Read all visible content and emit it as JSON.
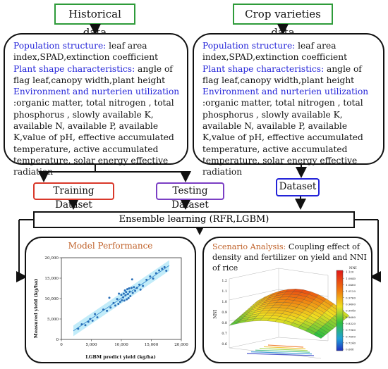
{
  "top": {
    "left": "Historical data",
    "right": "Crop varieties data"
  },
  "left_box": {
    "h1": "Population structure:",
    "t1": " leaf area index,SPAD,extinction coefficient",
    "h2": "Plant shape characteristics:",
    "t2": " angle of flag leaf,canopy width,plant height",
    "h3": "Environment and nurterien utilization",
    "t3": " :organic matter, total nitrogen , total phosphorus , slowly available K, available N, available P, available K,value of pH, effective accumulated temperature, active accumulated temperature, solar energy effective radiation"
  },
  "right_box": {
    "h1": "Population structure:",
    "t1": " leaf area index,SPAD,extinction coefficient",
    "h2": "Plant shape characteristics:",
    "t2": " angle of flag leaf,canopy width,plant height",
    "h3": "Environment and nurterien utilization",
    "t3": " :organic matter, total nitrogen , total phosphorus , slowly available K, available N, available P, available K,value of pH, effective accumulated temperature, active accumulated temperature, solar energy effective radiation"
  },
  "labels": {
    "training": "Training Dataset",
    "testing": "Testing Dataset",
    "dataset": "Dataset",
    "ensemble": "Ensemble learning (RFR,LGBM)"
  },
  "colors": {
    "green": "#2e9b3a",
    "training_border": "#d9382a",
    "testing_border": "#7b3fc4",
    "dataset_border": "#2323d8",
    "heading_blue": "#2323d8",
    "panel_title": "#c0622a"
  },
  "model_panel": {
    "title": "Model Performance"
  },
  "scenario_panel": {
    "title_highlight": "Scenario Analysis:",
    "title_rest": " Coupling effect of density and fertilizer on yield and NNI of rice",
    "zlabel": "NNI",
    "colorbar_title": "NNI",
    "z_ticks": [
      "1.2",
      "1.1",
      "1.0",
      "0.9",
      "0.8",
      "0.7",
      "0.6"
    ],
    "colorbar_ticks": [
      "1.120",
      "1.0840",
      "1.0480",
      "1.0120",
      "0.9760",
      "0.9400",
      "0.9040",
      "0.8680",
      "0.8320",
      "0.7960",
      "0.7600",
      "0.7240",
      "0.688"
    ]
  },
  "chart_data": {
    "type": "scatter",
    "title": "",
    "xlabel": "LGBM predict yield (kg/ha)",
    "ylabel": "Measured yield (kg/ha)",
    "xlim": [
      0,
      20000
    ],
    "ylim": [
      0,
      20000
    ],
    "x_ticks": [
      "0",
      "5,000",
      "10,000",
      "15,000",
      "20,000"
    ],
    "y_ticks": [
      "0",
      "5,000",
      "10,000",
      "15,000",
      "20,000"
    ],
    "points": [
      [
        2800,
        2600
      ],
      [
        3400,
        3700
      ],
      [
        4000,
        3500
      ],
      [
        4500,
        4300
      ],
      [
        4800,
        5000
      ],
      [
        5200,
        4600
      ],
      [
        5600,
        6200
      ],
      [
        6000,
        5400
      ],
      [
        7000,
        7300
      ],
      [
        7600,
        7000
      ],
      [
        8200,
        7800
      ],
      [
        8700,
        8900
      ],
      [
        9000,
        8300
      ],
      [
        9300,
        9900
      ],
      [
        9500,
        8700
      ],
      [
        9800,
        9200
      ],
      [
        10000,
        10900
      ],
      [
        10100,
        9600
      ],
      [
        10300,
        10300
      ],
      [
        10400,
        11200
      ],
      [
        10500,
        9500
      ],
      [
        10600,
        12000
      ],
      [
        10700,
        10800
      ],
      [
        10800,
        11600
      ],
      [
        10900,
        9800
      ],
      [
        11000,
        12300
      ],
      [
        11100,
        11100
      ],
      [
        11200,
        10100
      ],
      [
        11300,
        12500
      ],
      [
        11400,
        11700
      ],
      [
        11500,
        10600
      ],
      [
        11700,
        12600
      ],
      [
        11900,
        11400
      ],
      [
        12100,
        12800
      ],
      [
        12300,
        11900
      ],
      [
        12600,
        12600
      ],
      [
        13000,
        13400
      ],
      [
        13600,
        13100
      ],
      [
        14200,
        14600
      ],
      [
        14800,
        15400
      ],
      [
        15300,
        14900
      ],
      [
        15800,
        16200
      ],
      [
        16300,
        16900
      ],
      [
        16800,
        17300
      ],
      [
        17200,
        17700
      ],
      [
        17500,
        16800
      ],
      [
        8000,
        10200
      ],
      [
        11800,
        14700
      ],
      [
        9600,
        11200
      ],
      [
        13200,
        12200
      ]
    ],
    "fit_line": [
      [
        2000,
        2100
      ],
      [
        18000,
        18100
      ]
    ],
    "grid": false
  }
}
